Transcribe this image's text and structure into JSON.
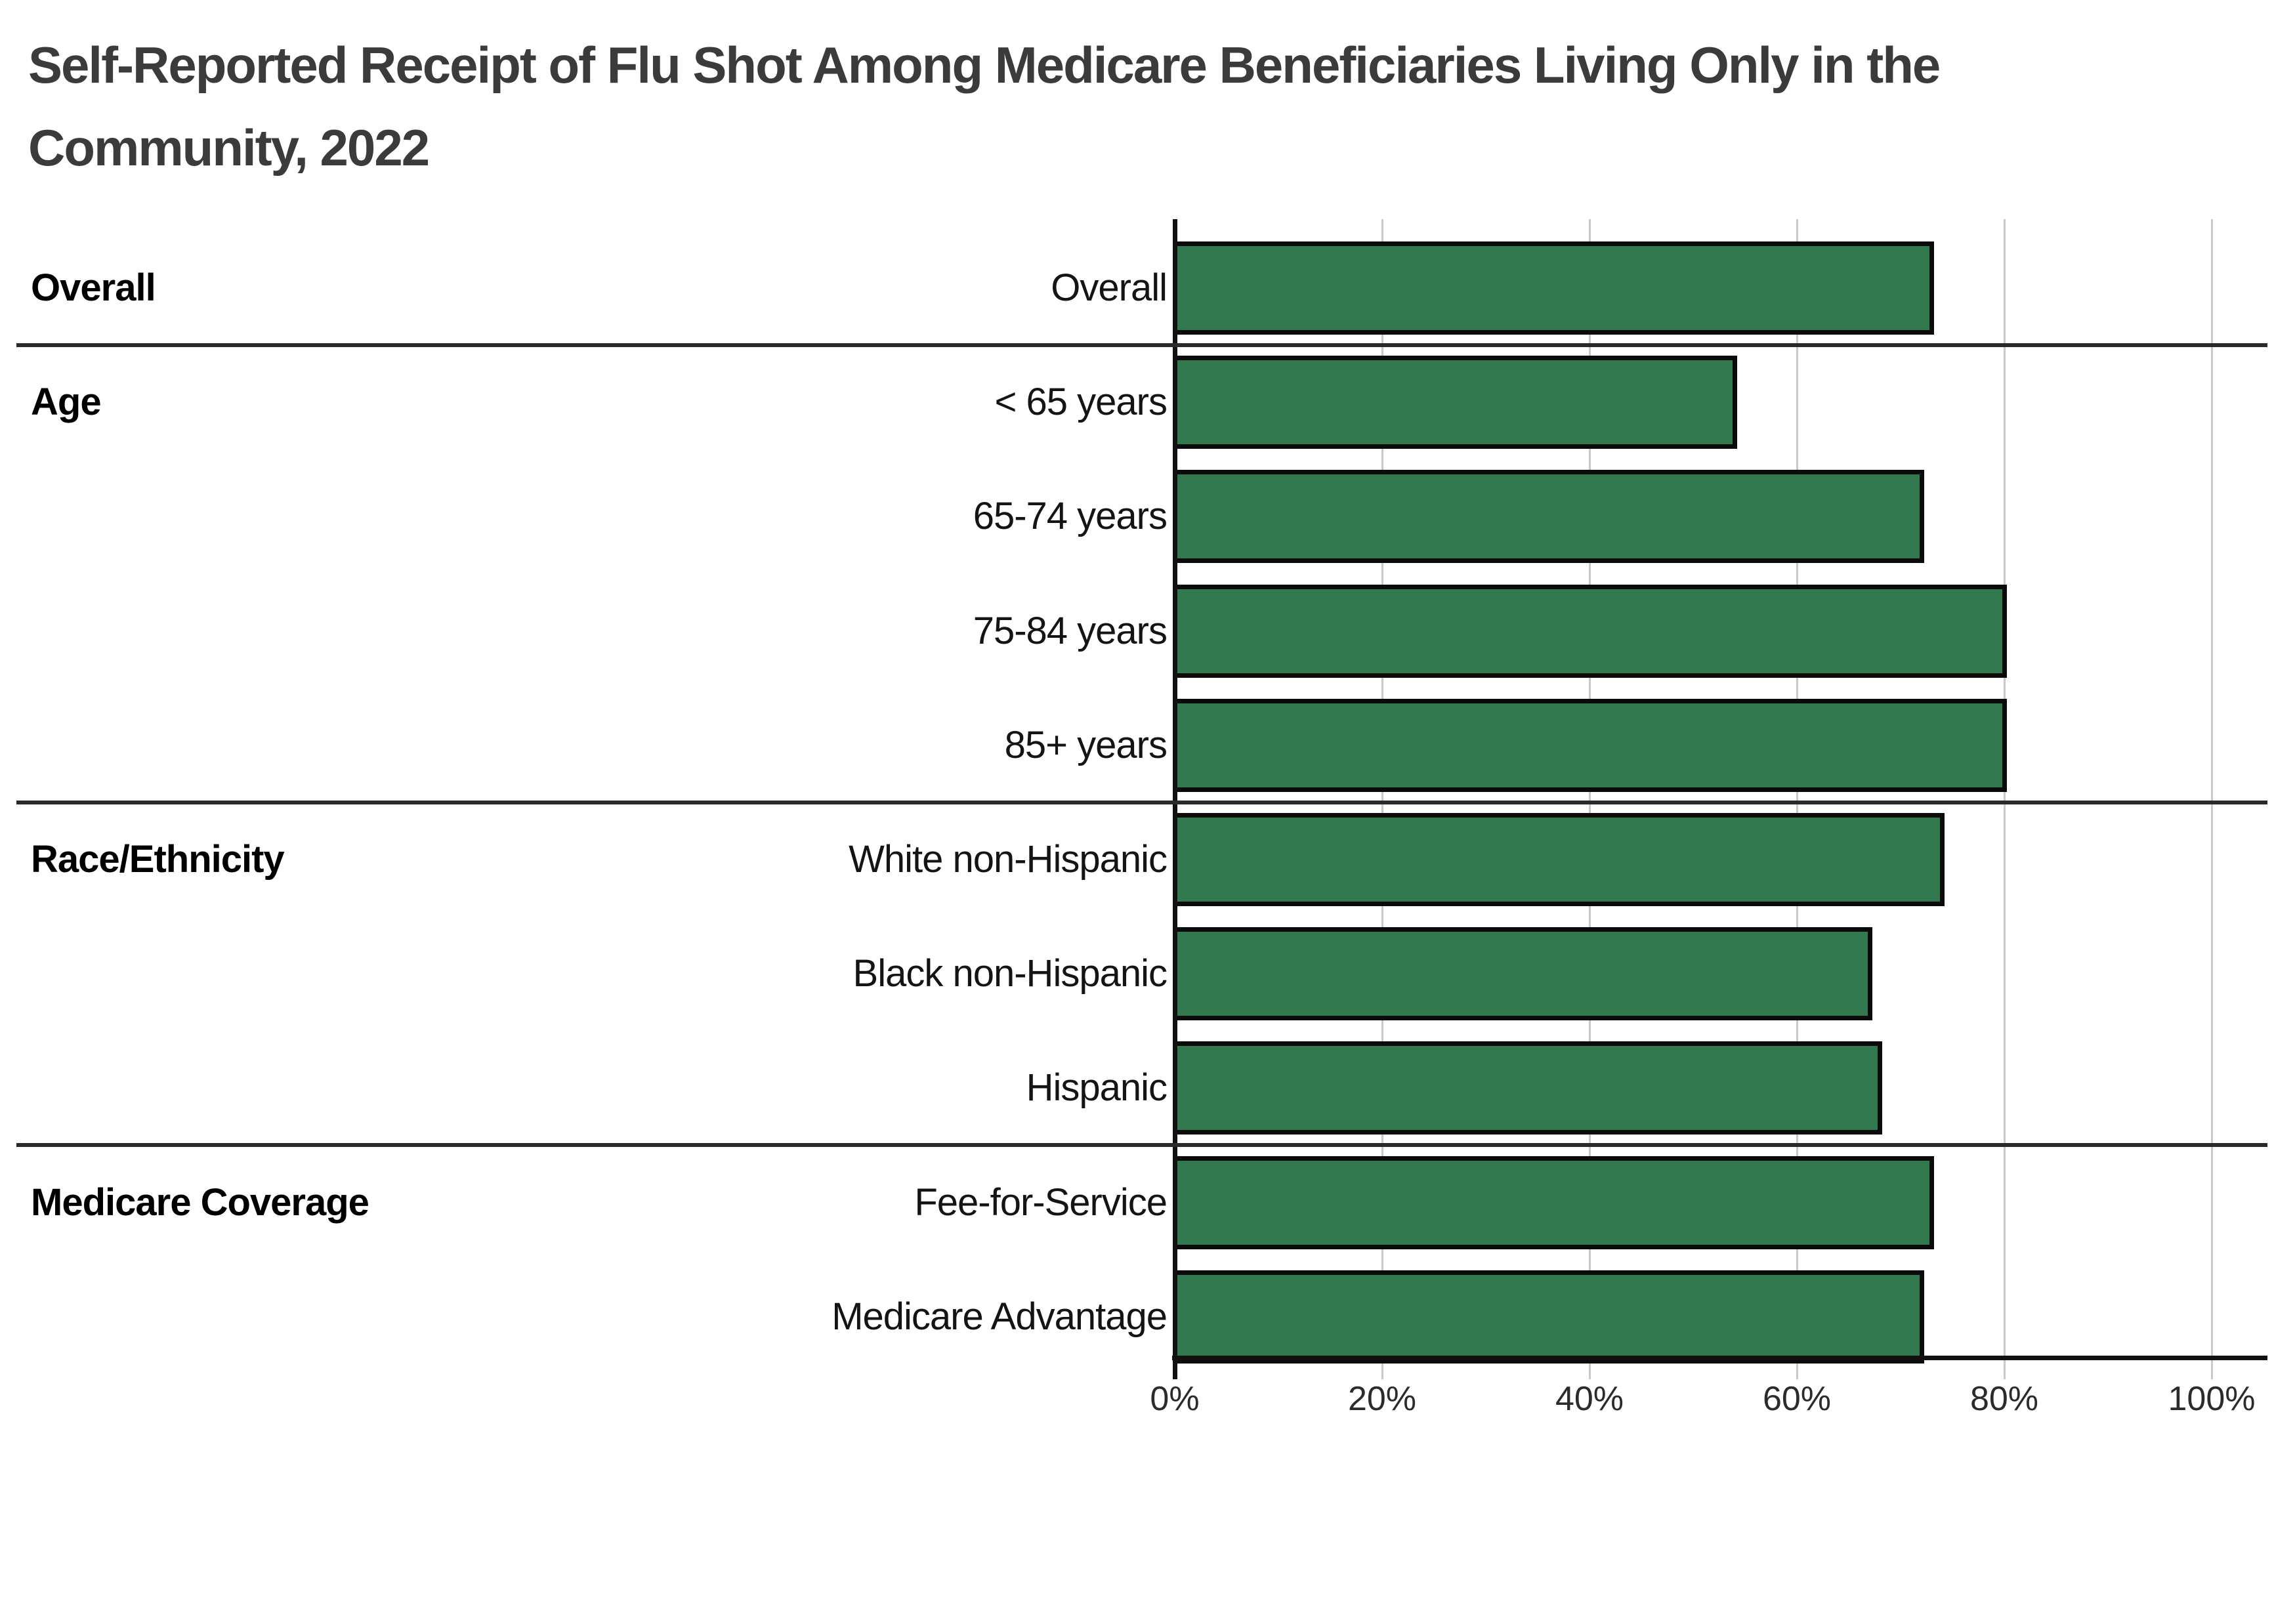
{
  "title_line1": "Self-Reported Receipt of Flu Shot Among Medicare Beneficiaries Living Only in the",
  "title_line2": "Community, 2022",
  "colors": {
    "bar_fill": "#32784F",
    "bar_stroke": "#0b0b0b",
    "gridline": "#c9c9c9",
    "axis": "#111111",
    "divider": "#2a2a2a",
    "title_text": "#3b3b3b",
    "label_text": "#141414"
  },
  "x_axis": {
    "min": 0,
    "max": 100,
    "tick_step": 20,
    "tick_labels": [
      "0%",
      "20%",
      "40%",
      "60%",
      "80%",
      "100%"
    ]
  },
  "chart_data": {
    "type": "bar",
    "orientation": "horizontal",
    "title": "Self-Reported Receipt of Flu Shot Among Medicare Beneficiaries Living Only in the Community, 2022",
    "xlabel": "",
    "ylabel": "",
    "unit": "%",
    "xlim": [
      0,
      100
    ],
    "grid": true,
    "legend": false,
    "sections": [
      {
        "name": "Overall",
        "rows": [
          {
            "label": "Overall",
            "value": 73
          }
        ]
      },
      {
        "name": "Age",
        "rows": [
          {
            "label": "< 65 years",
            "value": 54
          },
          {
            "label": "65-74 years",
            "value": 72
          },
          {
            "label": "75-84 years",
            "value": 80
          },
          {
            "label": "85+ years",
            "value": 80
          }
        ]
      },
      {
        "name": "Race/Ethnicity",
        "rows": [
          {
            "label": "White non-Hispanic",
            "value": 74
          },
          {
            "label": "Black non-Hispanic",
            "value": 67
          },
          {
            "label": "Hispanic",
            "value": 68
          }
        ]
      },
      {
        "name": "Medicare Coverage",
        "rows": [
          {
            "label": "Fee-for-Service",
            "value": 73
          },
          {
            "label": "Medicare Advantage",
            "value": 72
          }
        ]
      }
    ]
  }
}
